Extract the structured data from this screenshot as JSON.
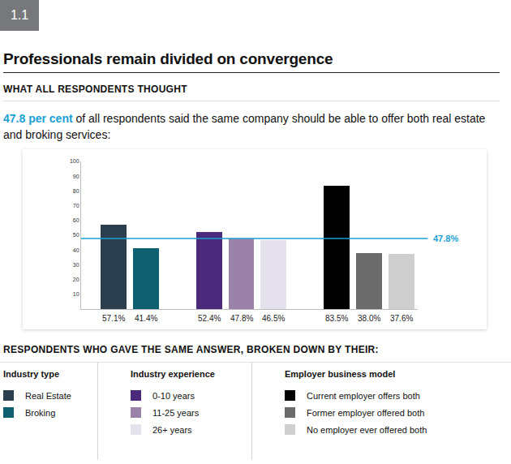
{
  "chart_data": {
    "type": "bar",
    "label": "1.1",
    "title": "Professionals remain divided on convergence",
    "subtitle": "WHAT ALL RESPONDENTS THOUGHT",
    "intro": {
      "highlight": "47.8 per cent",
      "text": "of all respondents said the same company should be able to offer both real estate and broking services:"
    },
    "legend_title": "RESPONDENTS WHO GAVE THE SAME ANSWER, BROKEN DOWN BY THEIR:",
    "categories": [
      "Real Estate",
      "Broking",
      "0-10 years",
      "11-25 years",
      "26+ years",
      "Current employer offers both",
      "Former employer offered both",
      "No employer ever offered both"
    ],
    "values": [
      57.1,
      41.4,
      52.4,
      47.8,
      46.5,
      83.5,
      38.0,
      37.6
    ],
    "value_labels": [
      "57.1%",
      "41.4%",
      "52.4%",
      "47.8%",
      "46.5%",
      "83.5%",
      "38.0%",
      "37.6%"
    ],
    "colors": [
      "#2c3f4e",
      "#0e5f70",
      "#4b2a7b",
      "#9a82a9",
      "#e5e1ec",
      "#000000",
      "#6b6b6b",
      "#cfcfcf"
    ],
    "groups": [
      {
        "title": "Industry type",
        "categories": [
          "Real Estate",
          "Broking"
        ]
      },
      {
        "title": "Industry experience",
        "categories": [
          "0-10 years",
          "11-25 years",
          "26+ years"
        ]
      },
      {
        "title": "Employer business model",
        "categories": [
          "Current employer offers both",
          "Former employer offered both",
          "No employer ever offered both"
        ]
      }
    ],
    "reference_line": {
      "value": 47.8,
      "label": "47.8%",
      "color": "#1a9fd6"
    },
    "ylim": [
      0,
      100
    ],
    "yticks": [
      10,
      20,
      30,
      40,
      50,
      60,
      70,
      80,
      90,
      100
    ],
    "grid": false,
    "data_labels": true,
    "tick_labels": "y"
  }
}
